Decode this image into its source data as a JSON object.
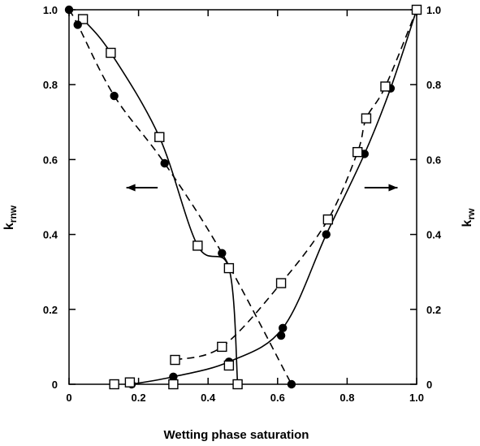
{
  "chart_data": {
    "type": "line",
    "xlabel": "Wetting phase saturation",
    "ylabel_left": {
      "main": "k",
      "sub": "rnw"
    },
    "ylabel_right": {
      "main": "k",
      "sub": "rw"
    },
    "xlim": [
      0,
      1.0
    ],
    "ylim": [
      0,
      1.0
    ],
    "x_ticks": [
      "0",
      "0.2",
      "0.4",
      "0.6",
      "0.8",
      "1.0"
    ],
    "y_ticks_left": [
      "0",
      "0.2",
      "0.4",
      "0.6",
      "0.8",
      "1.0"
    ],
    "y_ticks_right": [
      "0",
      "0.2",
      "0.4",
      "0.6",
      "0.8",
      "1.0"
    ],
    "grid": false,
    "series": [
      {
        "marker": "square",
        "line": "solid",
        "axis": "left",
        "x": [
          0.04,
          0.12,
          0.26,
          0.37,
          0.46,
          0.485
        ],
        "y": [
          0.975,
          0.885,
          0.66,
          0.37,
          0.31,
          0.0
        ]
      },
      {
        "marker": "circle",
        "line": "solid",
        "axis": "right",
        "x": [
          0.18,
          0.3,
          0.46,
          0.615,
          0.74,
          0.85,
          0.925,
          1.0
        ],
        "y": [
          0.0,
          0.02,
          0.06,
          0.15,
          0.4,
          0.615,
          0.79,
          1.0
        ]
      },
      {
        "marker": "circle",
        "line": "dashed",
        "axis": "left",
        "x": [
          0.0,
          0.025,
          0.13,
          0.275,
          0.44,
          0.64
        ],
        "y": [
          1.0,
          0.96,
          0.77,
          0.59,
          0.35,
          0.0
        ]
      },
      {
        "marker": "square",
        "line": "dashed",
        "axis": "right",
        "x": [
          0.305,
          0.44,
          0.61,
          0.745,
          0.83,
          0.855,
          0.91,
          1.0
        ],
        "y": [
          0.065,
          0.1,
          0.27,
          0.44,
          0.62,
          0.71,
          0.795,
          1.0
        ]
      }
    ],
    "extra_markers": [
      {
        "marker": "circle",
        "x": 0.3,
        "y": 0.0
      },
      {
        "marker": "square",
        "x": 0.13,
        "y": 0.0
      },
      {
        "marker": "square",
        "x": 0.175,
        "y": 0.005
      },
      {
        "marker": "square",
        "x": 0.3,
        "y": 0.0
      },
      {
        "marker": "square",
        "x": 0.46,
        "y": 0.05
      },
      {
        "marker": "circle",
        "x": 0.61,
        "y": 0.13
      }
    ],
    "arrows": [
      {
        "direction": "left",
        "from_x": 0.255,
        "to_x": 0.165,
        "y": 0.525
      },
      {
        "direction": "right",
        "from_x": 0.85,
        "to_x": 0.945,
        "y": 0.525
      }
    ]
  }
}
